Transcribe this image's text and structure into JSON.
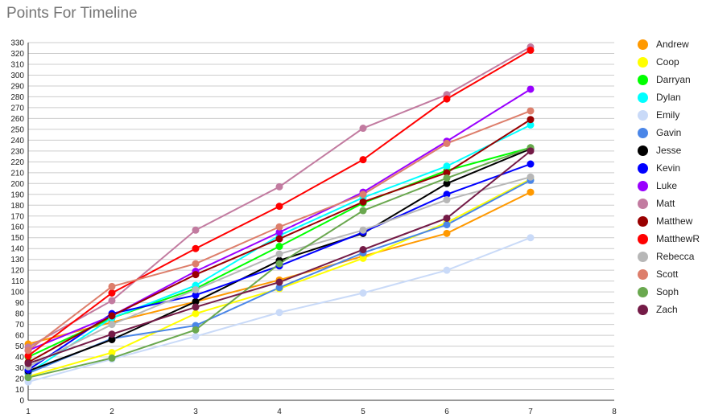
{
  "chart_data": {
    "type": "line",
    "title": "Points For Timeline",
    "xlabel": "",
    "ylabel": "",
    "x": [
      1,
      2,
      3,
      4,
      5,
      6,
      7
    ],
    "xlim": [
      1,
      8
    ],
    "ylim": [
      0,
      330
    ],
    "x_ticks": [
      "1",
      "2",
      "3",
      "4",
      "5",
      "6",
      "7",
      "8"
    ],
    "y_ticks": [
      "0",
      "10",
      "20",
      "30",
      "40",
      "50",
      "60",
      "70",
      "80",
      "90",
      "100",
      "110",
      "120",
      "130",
      "140",
      "150",
      "160",
      "170",
      "180",
      "190",
      "200",
      "210",
      "220",
      "230",
      "240",
      "250",
      "260",
      "270",
      "280",
      "290",
      "300",
      "310",
      "320",
      "330"
    ],
    "grid": true,
    "legend_position": "right",
    "series": [
      {
        "name": "Andrew",
        "color": "#ff9900",
        "values": [
          52,
          72,
          91,
          111,
          133,
          154,
          192
        ]
      },
      {
        "name": "Coop",
        "color": "#ffff00",
        "values": [
          22,
          44,
          80,
          103,
          131,
          164,
          204
        ]
      },
      {
        "name": "Darryan",
        "color": "#00ff00",
        "values": [
          40,
          76,
          103,
          142,
          182,
          212,
          233
        ]
      },
      {
        "name": "Dylan",
        "color": "#00ffff",
        "values": [
          25,
          76,
          106,
          152,
          187,
          216,
          254
        ]
      },
      {
        "name": "Emily",
        "color": "#c9daf8",
        "values": [
          17,
          38,
          59,
          81,
          99,
          120,
          150
        ]
      },
      {
        "name": "Gavin",
        "color": "#4a86e8",
        "values": [
          25,
          57,
          69,
          104,
          136,
          162,
          203
        ]
      },
      {
        "name": "Jesse",
        "color": "#000000",
        "values": [
          27,
          56,
          91,
          129,
          154,
          200,
          232
        ]
      },
      {
        "name": "Kevin",
        "color": "#0000ff",
        "values": [
          28,
          80,
          97,
          124,
          155,
          190,
          218
        ]
      },
      {
        "name": "Luke",
        "color": "#9900ff",
        "values": [
          46,
          78,
          119,
          155,
          192,
          239,
          287
        ]
      },
      {
        "name": "Matt",
        "color": "#c27ba0",
        "values": [
          49,
          92,
          157,
          197,
          251,
          282,
          326
        ]
      },
      {
        "name": "Matthew",
        "color": "#990000",
        "values": [
          35,
          78,
          116,
          149,
          183,
          210,
          259
        ]
      },
      {
        "name": "MatthewR",
        "color": "#ff0000",
        "values": [
          41,
          99,
          140,
          179,
          222,
          278,
          323
        ]
      },
      {
        "name": "Rebecca",
        "color": "#b7b7b7",
        "values": [
          31,
          70,
          102,
          135,
          157,
          185,
          206
        ]
      },
      {
        "name": "Scott",
        "color": "#dd7e6b",
        "values": [
          46,
          105,
          126,
          160,
          190,
          237,
          267
        ]
      },
      {
        "name": "Soph",
        "color": "#6aa84f",
        "values": [
          21,
          39,
          65,
          126,
          175,
          205,
          233
        ]
      },
      {
        "name": "Zach",
        "color": "#741b47",
        "values": [
          34,
          61,
          86,
          109,
          139,
          168,
          230
        ]
      }
    ]
  }
}
